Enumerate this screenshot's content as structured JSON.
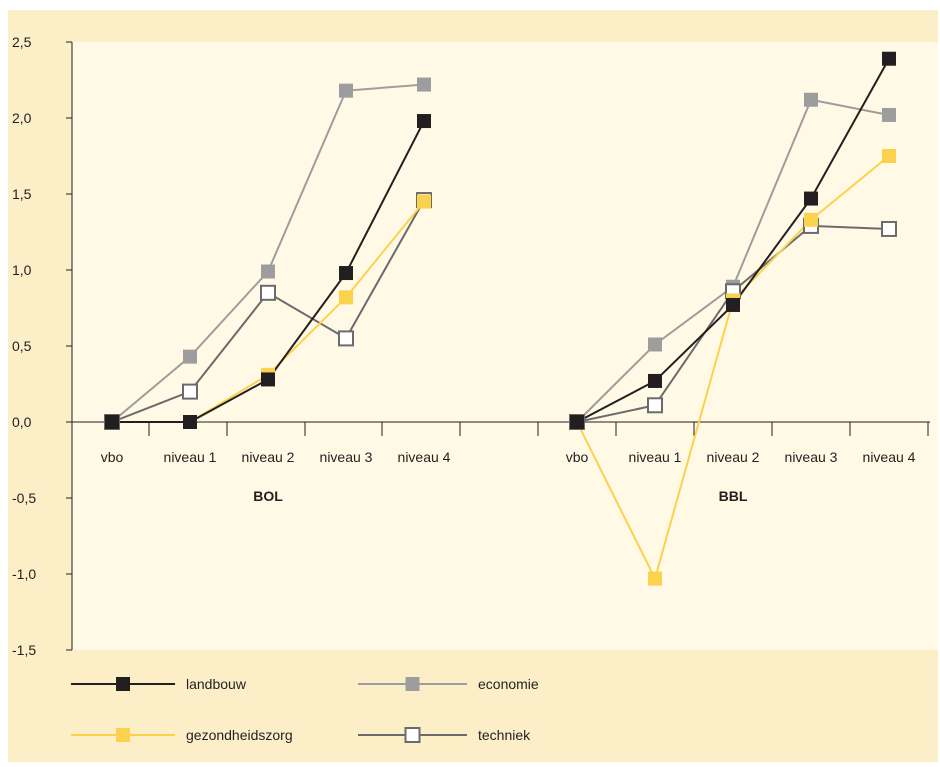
{
  "chart_data": {
    "type": "line",
    "y_ticks": [
      "2,5",
      "2,0",
      "1,5",
      "1,0",
      "0,5",
      "0,0",
      "-0,5",
      "-1,0",
      "-1,5"
    ],
    "ylim": [
      -1.5,
      2.5
    ],
    "grid": false,
    "legend_placement": "bottom",
    "panels": [
      {
        "title": "BOL",
        "categories": [
          "vbo",
          "niveau 1",
          "niveau 2",
          "niveau 3",
          "niveau 4"
        ],
        "series": [
          {
            "name": "landbouw",
            "values": [
              0,
              0,
              0.28,
              0.98,
              1.98
            ]
          },
          {
            "name": "economie",
            "values": [
              0,
              0.43,
              0.99,
              2.18,
              2.22
            ]
          },
          {
            "name": "gezondheidszorg",
            "values": [
              0,
              0,
              0.31,
              0.82,
              1.45
            ]
          },
          {
            "name": "techniek",
            "values": [
              0,
              0.2,
              0.85,
              0.55,
              1.46
            ]
          }
        ]
      },
      {
        "title": "BBL",
        "categories": [
          "vbo",
          "niveau 1",
          "niveau 2",
          "niveau 3",
          "niveau 4"
        ],
        "series": [
          {
            "name": "landbouw",
            "values": [
              0,
              0.27,
              0.77,
              1.47,
              2.39
            ]
          },
          {
            "name": "economie",
            "values": [
              0,
              0.51,
              0.89,
              2.12,
              2.02
            ]
          },
          {
            "name": "gezondheidszorg",
            "values": [
              0,
              -1.03,
              0.8,
              1.33,
              1.75
            ]
          },
          {
            "name": "techniek",
            "values": [
              0,
              0.11,
              0.86,
              1.29,
              1.27
            ]
          }
        ]
      }
    ],
    "legend": [
      {
        "name": "landbouw",
        "color": "#231f20",
        "marker": "filled"
      },
      {
        "name": "economie",
        "color": "#9d9d9d",
        "marker": "filled"
      },
      {
        "name": "gezondheidszorg",
        "color": "#fbd24e",
        "marker": "filled"
      },
      {
        "name": "techniek",
        "color": "#6b6b6b",
        "marker": "hollow"
      }
    ]
  }
}
